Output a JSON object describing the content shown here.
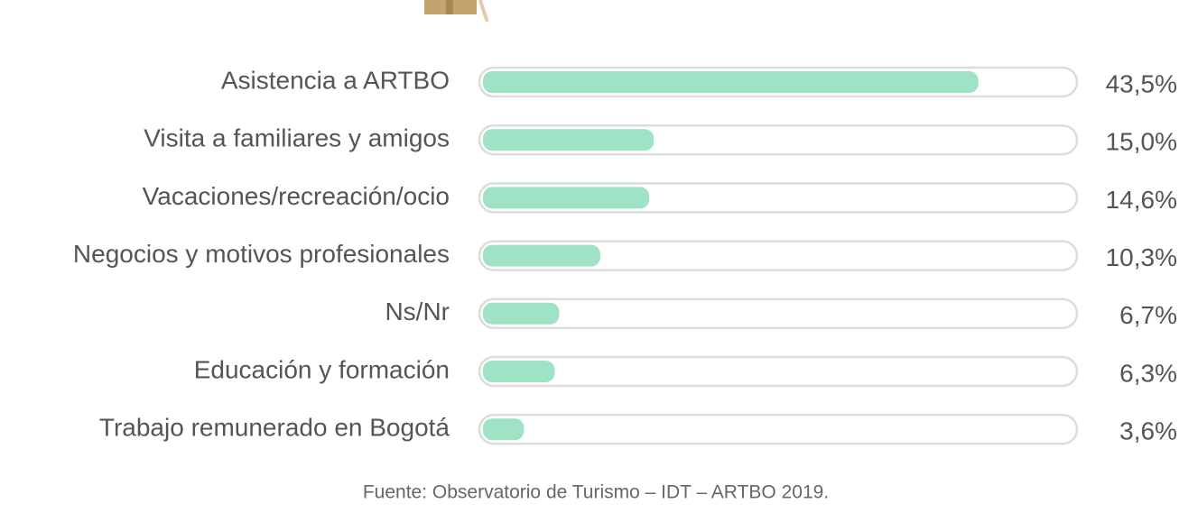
{
  "chart_data": {
    "type": "bar",
    "orientation": "horizontal",
    "categories": [
      "Asistencia a ARTBO",
      "Visita a familiares y amigos",
      "Vacaciones/recreación/ocio",
      "Negocios y motivos profesionales",
      "Ns/Nr",
      "Educación y formación",
      "Trabajo remunerado en Bogotá"
    ],
    "values": [
      43.5,
      15.0,
      14.6,
      10.3,
      6.7,
      6.3,
      3.6
    ],
    "value_labels": [
      "43,5%",
      "15,0%",
      "14,6%",
      "10,3%",
      "6,7%",
      "6,3%",
      "3,6%"
    ],
    "color": "#9fe3c7",
    "xlim": [
      0,
      52
    ],
    "source": "Fuente: Observatorio de Turismo – IDT – ARTBO 2019."
  }
}
